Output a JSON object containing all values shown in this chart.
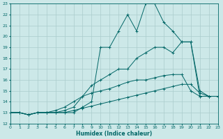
{
  "xlabel": "Humidex (Indice chaleur)",
  "background_color": "#cce8e8",
  "grid_color": "#aacccc",
  "line_color": "#006666",
  "ylim": [
    12,
    23
  ],
  "xlim": [
    0,
    23
  ],
  "yticks": [
    12,
    13,
    14,
    15,
    16,
    17,
    18,
    19,
    20,
    21,
    22,
    23
  ],
  "xticks": [
    0,
    1,
    2,
    3,
    4,
    5,
    6,
    7,
    8,
    9,
    10,
    11,
    12,
    13,
    14,
    15,
    16,
    17,
    18,
    19,
    20,
    21,
    22,
    23
  ],
  "series": [
    {
      "x": [
        0,
        1,
        2,
        3,
        4,
        5,
        6,
        7,
        8,
        9,
        10,
        11,
        12,
        13,
        14,
        15,
        16,
        17,
        18,
        19,
        20,
        21,
        22,
        23
      ],
      "y": [
        13,
        13,
        12.8,
        13,
        13,
        13,
        13,
        13,
        13.5,
        14,
        19,
        19,
        20.5,
        22,
        20.5,
        23,
        23,
        21.3,
        20.5,
        19.5,
        19.5,
        14.5,
        14.5,
        14.5
      ]
    },
    {
      "x": [
        0,
        1,
        2,
        3,
        4,
        5,
        6,
        7,
        8,
        9,
        10,
        11,
        12,
        13,
        14,
        15,
        16,
        17,
        18,
        19,
        20,
        21,
        22,
        23
      ],
      "y": [
        13,
        13,
        12.8,
        13,
        13,
        13,
        13.2,
        13.5,
        14.5,
        15.5,
        16,
        16.5,
        17,
        17,
        18,
        18.5,
        19,
        19,
        18.5,
        19.5,
        19.5,
        15,
        14.5,
        14.5
      ]
    },
    {
      "x": [
        0,
        1,
        2,
        3,
        4,
        5,
        6,
        7,
        8,
        9,
        10,
        11,
        12,
        13,
        14,
        15,
        16,
        17,
        18,
        19,
        20,
        21,
        22,
        23
      ],
      "y": [
        13,
        13,
        12.8,
        13,
        13,
        13.2,
        13.5,
        14,
        14.5,
        14.8,
        15,
        15.2,
        15.5,
        15.8,
        16,
        16,
        16.2,
        16.4,
        16.5,
        16.5,
        15,
        14.5,
        14.5,
        14.5
      ]
    },
    {
      "x": [
        0,
        1,
        2,
        3,
        4,
        5,
        6,
        7,
        8,
        9,
        10,
        11,
        12,
        13,
        14,
        15,
        16,
        17,
        18,
        19,
        20,
        21,
        22,
        23
      ],
      "y": [
        13,
        13,
        12.8,
        13,
        13,
        13,
        13,
        13.2,
        13.4,
        13.6,
        13.8,
        14,
        14.2,
        14.4,
        14.6,
        14.8,
        15,
        15.2,
        15.4,
        15.6,
        15.6,
        14.8,
        14.5,
        14.5
      ]
    }
  ]
}
